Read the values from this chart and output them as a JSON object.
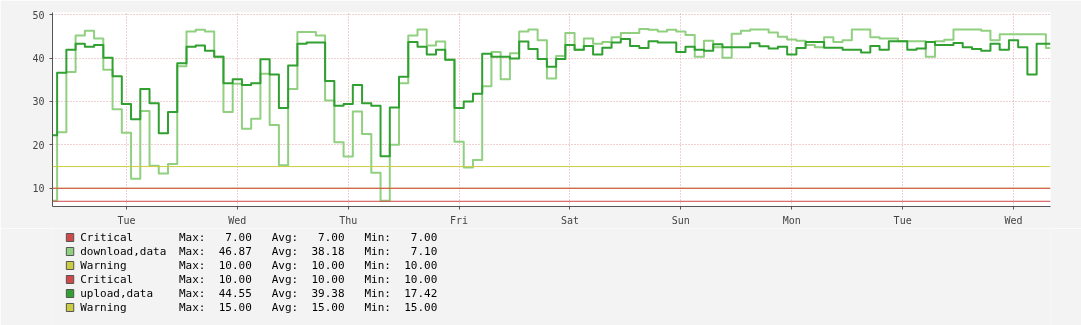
{
  "chart_data": {
    "type": "step",
    "categories": [
      null,
      null,
      null,
      null,
      null,
      null,
      null,
      null,
      "Tue",
      null,
      null,
      null,
      null,
      null,
      null,
      null,
      null,
      null,
      null,
      null,
      "Wed",
      null,
      null,
      null,
      null,
      null,
      null,
      null,
      null,
      null,
      null,
      null,
      "Thu",
      null,
      null,
      null,
      null,
      null,
      null,
      null,
      null,
      null,
      null,
      null,
      "Fri",
      null,
      null,
      null,
      null,
      null,
      null,
      null,
      null,
      null,
      null,
      null,
      "Sat",
      null,
      null,
      null,
      null,
      null,
      null,
      null,
      null,
      null,
      null,
      null,
      "Sun",
      null,
      null,
      null,
      null,
      null,
      null,
      null,
      null,
      null,
      null,
      null,
      "Mon",
      null,
      null,
      null,
      null,
      null,
      null,
      null,
      null,
      null,
      null,
      null,
      "Tue",
      null,
      null,
      null,
      null,
      null,
      null,
      null,
      null,
      null,
      null,
      null,
      "Wed",
      null,
      null,
      null,
      null
    ],
    "series": [
      {
        "name": "download,data",
        "color": "#90d080",
        "values": [
          7.1,
          22.9,
          36.8,
          45.2,
          46.3,
          44.5,
          37.3,
          28.2,
          22.8,
          12.2,
          27.8,
          15.2,
          13.4,
          15.6,
          38.1,
          46.1,
          46.5,
          46.1,
          40.3,
          27.6,
          34.1,
          23.7,
          26.0,
          36.4,
          24.6,
          15.3,
          32.9,
          46.0,
          46.0,
          45.2,
          30.2,
          20.6,
          17.3,
          27.7,
          22.5,
          13.6,
          7.1,
          20.0,
          34.2,
          45.2,
          46.6,
          42.9,
          43.8,
          39.6,
          20.7,
          14.8,
          16.5,
          33.5,
          41.4,
          35.1,
          41.1,
          46.1,
          46.6,
          44.1,
          35.3,
          40.5,
          45.8,
          41.9,
          44.5,
          43.3,
          43.7,
          44.8,
          45.8,
          45.8,
          46.7,
          46.5,
          46.1,
          46.5,
          46.1,
          45.3,
          40.3,
          44.0,
          42.5,
          40.1,
          45.6,
          46.3,
          46.6,
          46.6,
          45.9,
          44.9,
          44.3,
          44.0,
          43.0,
          42.5,
          44.8,
          43.7,
          44.1,
          46.6,
          46.6,
          44.8,
          44.5,
          44.5,
          43.9,
          43.9,
          43.9,
          40.3,
          43.9,
          44.2,
          46.6,
          46.6,
          46.6,
          46.3,
          44.1,
          45.5,
          45.5,
          45.5,
          45.5,
          45.5,
          42.3
        ]
      },
      {
        "name": "upload,data",
        "color": "#30a030",
        "values": [
          22.2,
          36.6,
          41.9,
          43.3,
          42.6,
          43.0,
          40.1,
          35.8,
          29.4,
          25.9,
          32.9,
          29.6,
          22.7,
          27.6,
          38.8,
          42.6,
          42.9,
          41.7,
          40.3,
          34.2,
          35.1,
          33.8,
          34.2,
          39.7,
          36.2,
          28.5,
          38.3,
          43.3,
          43.6,
          43.6,
          34.7,
          29.0,
          29.4,
          33.8,
          29.6,
          29.0,
          17.4,
          28.6,
          35.7,
          43.7,
          42.6,
          40.8,
          41.9,
          39.6,
          28.5,
          30.0,
          31.8,
          41.0,
          40.3,
          40.3,
          39.9,
          43.8,
          42.1,
          39.8,
          38.0,
          39.8,
          43.0,
          41.9,
          42.8,
          40.8,
          42.4,
          43.6,
          44.4,
          42.8,
          42.3,
          43.9,
          43.6,
          43.6,
          41.4,
          42.6,
          41.9,
          41.7,
          43.2,
          42.5,
          42.5,
          42.5,
          43.4,
          42.7,
          42.2,
          42.6,
          40.8,
          42.3,
          43.7,
          43.7,
          42.4,
          42.4,
          41.9,
          41.9,
          41.3,
          42.8,
          41.9,
          43.9,
          43.9,
          41.9,
          42.2,
          43.7,
          43.0,
          43.0,
          43.5,
          42.5,
          42.1,
          41.7,
          43.3,
          41.9,
          44.1,
          42.5,
          36.2,
          43.3,
          43.3
        ]
      }
    ],
    "ref_lines": [
      {
        "axis": "y",
        "value": 7,
        "label": "Critical",
        "color": "#d04848"
      },
      {
        "axis": "y",
        "value": 10,
        "label": "Warning",
        "color": "#cccc40"
      },
      {
        "axis": "y",
        "value": 10,
        "label": "Critical",
        "color": "#d04848"
      },
      {
        "axis": "y",
        "value": 15,
        "label": "Warning",
        "color": "#cccc40"
      }
    ],
    "annotations": [
      "Max:   7.00   Avg:   7.00   Min:   7.00",
      "Max:  46.87   Avg:  38.18   Min:   7.10",
      "Max:  10.00   Avg:  10.00   Min:  10.00",
      "Max:  10.00   Avg:  10.00   Min:  10.00",
      "Max:  44.55   Avg:  39.38   Min:  17.42",
      "Max:  15.00   Avg:  15.00   Min:  15.00"
    ],
    "ylim": [
      5.8,
      50.5
    ],
    "yticks": [
      10,
      20,
      30,
      40,
      50
    ],
    "grid": true,
    "legend": "bottom"
  }
}
